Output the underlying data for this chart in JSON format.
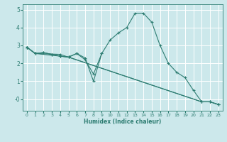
{
  "title": "",
  "xlabel": "Humidex (Indice chaleur)",
  "bg_color": "#cce8eb",
  "grid_color": "#ffffff",
  "line_color": "#2e7d72",
  "xlim": [
    -0.5,
    23.5
  ],
  "ylim": [
    -0.65,
    5.3
  ],
  "xticks": [
    0,
    1,
    2,
    3,
    4,
    5,
    6,
    7,
    8,
    9,
    10,
    11,
    12,
    13,
    14,
    15,
    16,
    17,
    18,
    19,
    20,
    21,
    22,
    23
  ],
  "yticks": [
    0,
    1,
    2,
    3,
    4,
    5
  ],
  "ytick_labels": [
    "-0",
    "1",
    "2",
    "3",
    "4",
    "5"
  ],
  "main_line": {
    "x": [
      0,
      1,
      2,
      3,
      4,
      5,
      6,
      7,
      8,
      9,
      10,
      11,
      12,
      13,
      14,
      15,
      16,
      17,
      18,
      19,
      20,
      21,
      22,
      23
    ],
    "y": [
      2.9,
      2.55,
      2.6,
      2.5,
      2.4,
      2.35,
      2.55,
      2.3,
      1.0,
      2.55,
      3.3,
      3.7,
      4.0,
      4.8,
      4.8,
      4.3,
      3.0,
      2.0,
      1.5,
      1.2,
      0.5,
      -0.15,
      -0.15,
      -0.3
    ]
  },
  "extra_lines": [
    {
      "x": [
        0,
        1,
        2,
        3,
        4,
        5,
        6,
        7,
        8,
        9
      ],
      "y": [
        2.9,
        2.55,
        2.6,
        2.5,
        2.4,
        2.35,
        2.55,
        2.2,
        1.4,
        2.55
      ]
    },
    {
      "x": [
        0,
        1,
        4,
        21,
        22,
        23
      ],
      "y": [
        2.9,
        2.55,
        2.5,
        -0.15,
        -0.15,
        -0.3
      ]
    },
    {
      "x": [
        0,
        1,
        4,
        5,
        21,
        22,
        23
      ],
      "y": [
        2.9,
        2.55,
        2.4,
        2.35,
        -0.15,
        -0.15,
        -0.3
      ]
    }
  ]
}
